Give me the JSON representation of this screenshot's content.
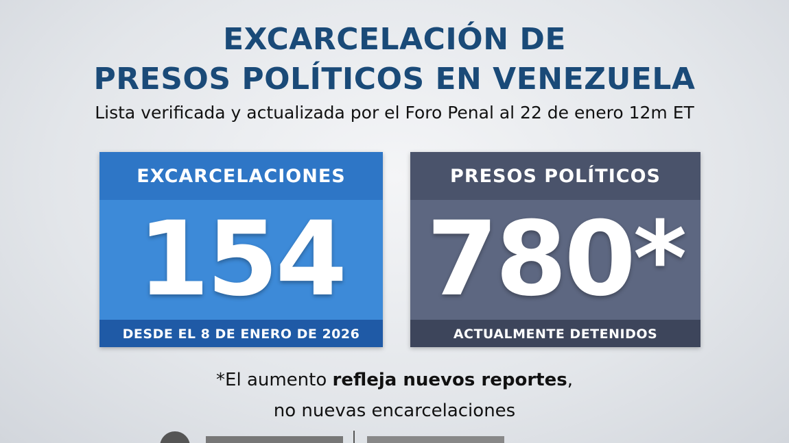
{
  "header": {
    "title_lines": [
      "EXCARCELACIÓN DE",
      "PRESOS POLÍTICOS EN VENEZUELA"
    ],
    "subtitle": "Lista verificada y actualizada por el Foro Penal al 22 de enero 12m ET"
  },
  "cards": [
    {
      "heading": "EXCARCELACIONES",
      "number": "154",
      "caption": "DESDE EL 8 DE ENERO DE 2026"
    },
    {
      "heading": "PRESOS POLÍTICOS",
      "number": "780*",
      "caption": "ACTUALMENTE DETENIDOS"
    }
  ],
  "note": {
    "line1_start": "*El aumento ",
    "line1_bold": "refleja nuevos reportes",
    "line1_end": ",",
    "line2": "no nuevas encarcelaciones"
  }
}
